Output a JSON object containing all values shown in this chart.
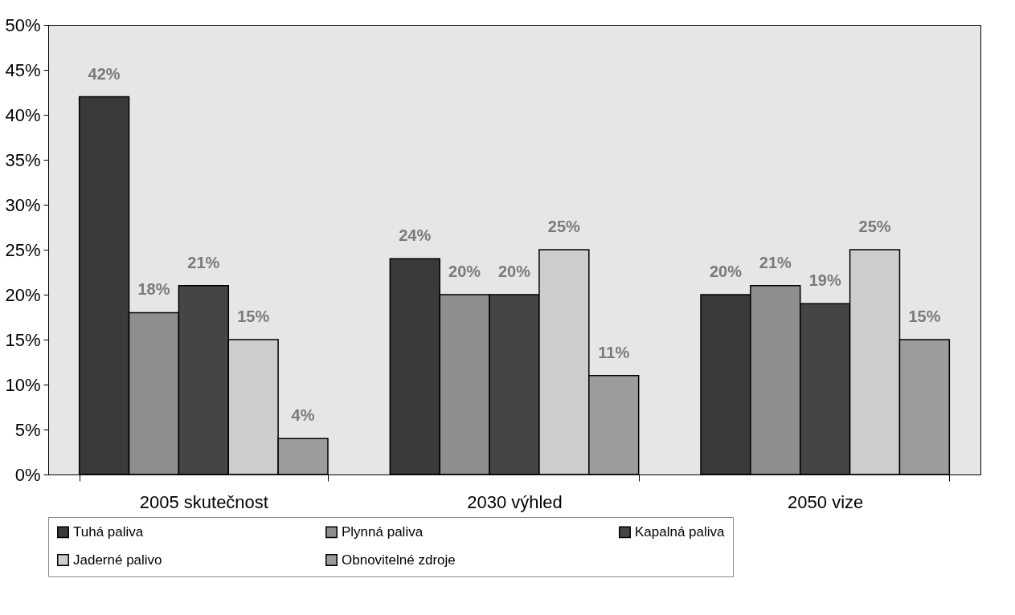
{
  "chart_data": {
    "type": "bar",
    "categories": [
      "2005 skutečnost",
      "2030 výhled",
      "2050 vize"
    ],
    "series": [
      {
        "name": "Tuhá paliva",
        "color": "#3a3a3a",
        "values": [
          42,
          24,
          20
        ],
        "value_labels": [
          "42%",
          "24%",
          "20%"
        ]
      },
      {
        "name": "Plynná paliva",
        "color": "#8e8e8e",
        "values": [
          18,
          20,
          21
        ],
        "value_labels": [
          "18%",
          "20%",
          "21%"
        ]
      },
      {
        "name": "Kapalná paliva",
        "color": "#454545",
        "values": [
          21,
          20,
          19
        ],
        "value_labels": [
          "21%",
          "20%",
          "19%"
        ]
      },
      {
        "name": "Jaderné palivo",
        "color": "#cdcdcd",
        "values": [
          15,
          25,
          25
        ],
        "value_labels": [
          "15%",
          "25%",
          "25%"
        ]
      },
      {
        "name": "Obnovitelné zdroje",
        "color": "#9c9c9c",
        "values": [
          4,
          11,
          15
        ],
        "value_labels": [
          "4%",
          "11%",
          "15%"
        ]
      }
    ],
    "ylim": [
      0,
      50
    ],
    "yticks": [
      {
        "value": 0,
        "label": "0%"
      },
      {
        "value": 5,
        "label": "5%"
      },
      {
        "value": 10,
        "label": "10%"
      },
      {
        "value": 15,
        "label": "15%"
      },
      {
        "value": 20,
        "label": "20%"
      },
      {
        "value": 25,
        "label": "25%"
      },
      {
        "value": 30,
        "label": "30%"
      },
      {
        "value": 35,
        "label": "35%"
      },
      {
        "value": 40,
        "label": "40%"
      },
      {
        "value": 45,
        "label": "45%"
      },
      {
        "value": 50,
        "label": "50%"
      }
    ],
    "grid": false,
    "legend": "bottom"
  }
}
